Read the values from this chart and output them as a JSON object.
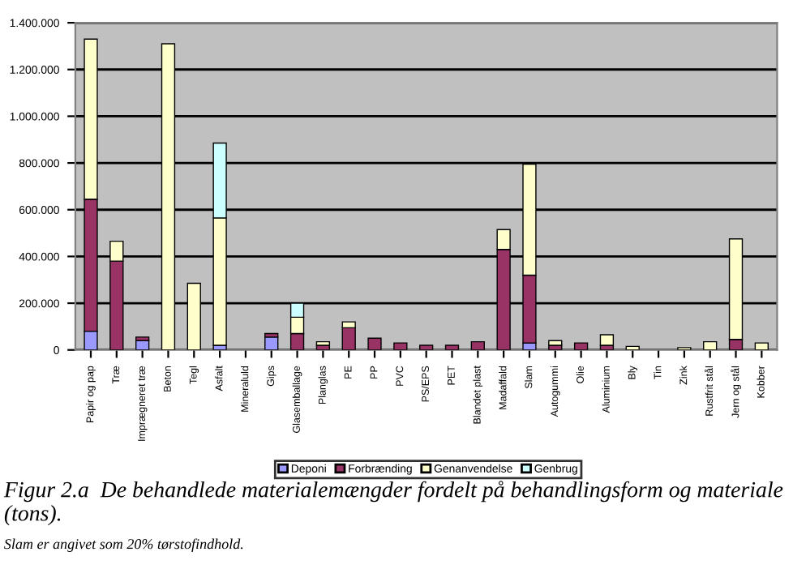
{
  "chart_data": {
    "type": "bar",
    "stacked": true,
    "categories": [
      "Papir og pap",
      "Træ",
      "Imprægneret træ",
      "Beton",
      "Tegl",
      "Asfalt",
      "Mineraluld",
      "Gips",
      "Glasemballage",
      "Planglas",
      "PE",
      "PP",
      "PVC",
      "PS/EPS",
      "PET",
      "Blandet plast",
      "Madaffald",
      "Slam",
      "Autogummi",
      "Olie",
      "Aluminium",
      "Bly",
      "Tin",
      "Zink",
      "Rustfrit stål",
      "Jern og stål",
      "Kobber"
    ],
    "series": [
      {
        "name": "Deponi",
        "color": "#9999ff",
        "values": [
          80000,
          0,
          40000,
          0,
          0,
          20000,
          0,
          55000,
          0,
          0,
          0,
          0,
          0,
          0,
          0,
          0,
          0,
          30000,
          0,
          0,
          0,
          0,
          0,
          0,
          0,
          0,
          0
        ]
      },
      {
        "name": "Forbrænding",
        "color": "#993366",
        "values": [
          565000,
          380000,
          15000,
          0,
          0,
          0,
          0,
          15000,
          70000,
          20000,
          95000,
          50000,
          30000,
          20000,
          20000,
          35000,
          430000,
          290000,
          20000,
          30000,
          20000,
          0,
          0,
          0,
          0,
          45000,
          0
        ]
      },
      {
        "name": "Genanvendelse",
        "color": "#ffffcc",
        "values": [
          685000,
          85000,
          0,
          1310000,
          285000,
          545000,
          0,
          0,
          70000,
          15000,
          25000,
          0,
          0,
          0,
          0,
          0,
          85000,
          475000,
          20000,
          0,
          45000,
          15000,
          0,
          10000,
          35000,
          430000,
          30000
        ]
      },
      {
        "name": "Genbrug",
        "color": "#ccffff",
        "values": [
          0,
          0,
          0,
          0,
          0,
          320000,
          0,
          0,
          60000,
          0,
          0,
          0,
          0,
          0,
          0,
          0,
          0,
          0,
          0,
          0,
          0,
          0,
          0,
          0,
          0,
          0,
          0
        ]
      }
    ],
    "ylim": [
      0,
      1400000
    ],
    "yticks": [
      {
        "value": 0,
        "label": "0"
      },
      {
        "value": 200000,
        "label": "200.000"
      },
      {
        "value": 400000,
        "label": "400.000"
      },
      {
        "value": 600000,
        "label": "600.000"
      },
      {
        "value": 800000,
        "label": "800.000"
      },
      {
        "value": 1000000,
        "label": "1.000.000"
      },
      {
        "value": 1200000,
        "label": "1.200.000"
      },
      {
        "value": 1400000,
        "label": "1.400.000"
      }
    ],
    "grid": "y",
    "legend": "bottom",
    "annotations": [
      "Figur 2.a  De behandlede materialemængder fordelt på behandlingsform og materiale (tons).",
      "Slam er angivet som 20% tørstofindhold."
    ]
  }
}
